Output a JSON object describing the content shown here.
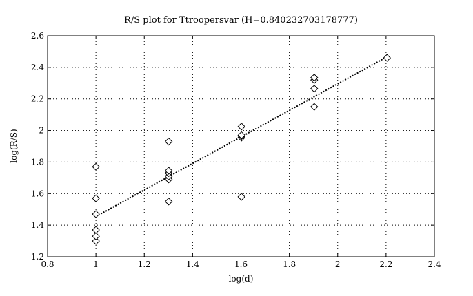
{
  "chart_data": {
    "type": "scatter",
    "title": "R/S plot for Ttroopersvar (H=0.840232703178777)",
    "xlabel": "log(d)",
    "ylabel": "log(R/S)",
    "xlim": [
      0.8,
      2.4
    ],
    "ylim": [
      1.2,
      2.6
    ],
    "xticks": [
      "0.8",
      "1",
      "1.2",
      "1.4",
      "1.6",
      "1.8",
      "2",
      "2.2",
      "2.4"
    ],
    "yticks": [
      "1.2",
      "1.4",
      "1.6",
      "1.8",
      "2",
      "2.2",
      "2.4",
      "2.6"
    ],
    "grid": true,
    "series": [
      {
        "marker": "diamond",
        "points": [
          [
            1.0,
            1.3
          ],
          [
            1.0,
            1.33
          ],
          [
            1.0,
            1.37
          ],
          [
            1.0,
            1.47
          ],
          [
            1.0,
            1.57
          ],
          [
            1.0,
            1.77
          ],
          [
            1.301,
            1.55
          ],
          [
            1.301,
            1.69
          ],
          [
            1.301,
            1.71
          ],
          [
            1.301,
            1.73
          ],
          [
            1.301,
            1.745
          ],
          [
            1.301,
            1.93
          ],
          [
            1.602,
            1.58
          ],
          [
            1.602,
            1.955
          ],
          [
            1.602,
            1.965
          ],
          [
            1.602,
            1.97
          ],
          [
            1.602,
            2.025
          ],
          [
            1.903,
            2.15
          ],
          [
            1.903,
            2.265
          ],
          [
            1.903,
            2.32
          ],
          [
            1.903,
            2.335
          ],
          [
            2.204,
            2.46
          ]
        ]
      },
      {
        "style": "dotted-line",
        "points": [
          [
            1.0,
            1.455
          ],
          [
            2.204,
            2.467
          ]
        ]
      }
    ]
  }
}
